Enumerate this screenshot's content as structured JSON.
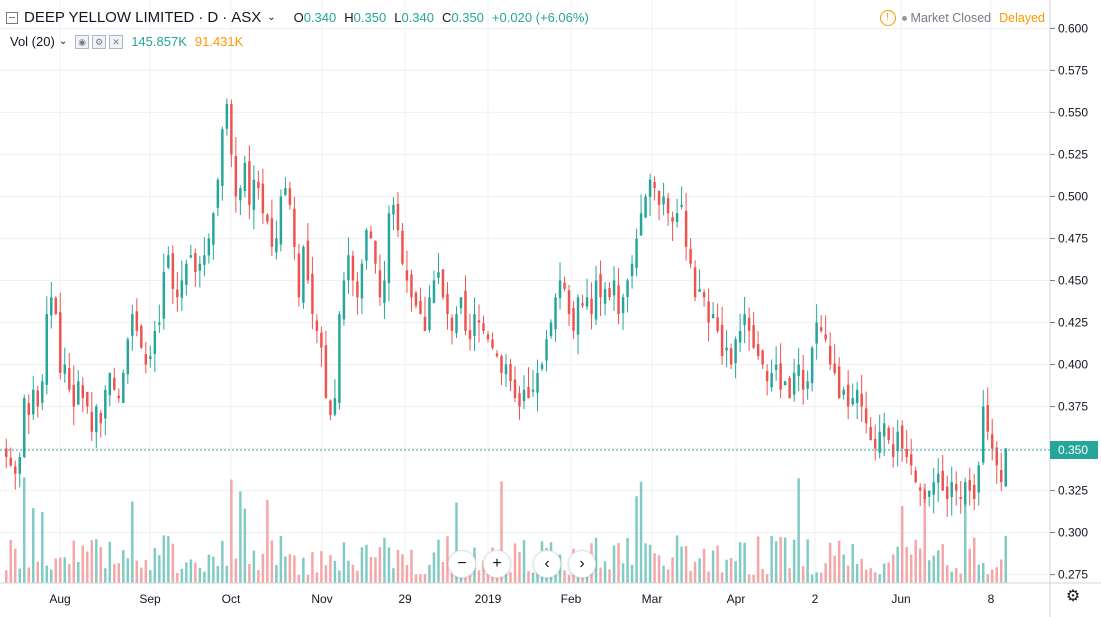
{
  "header": {
    "symbol": "DEEP YELLOW LIMITED",
    "sep1": "·",
    "interval": "D",
    "sep2": "·",
    "exchange": "ASX",
    "o_label": "O",
    "o_value": "0.340",
    "h_label": "H",
    "h_value": "0.350",
    "l_label": "L",
    "l_value": "0.340",
    "c_label": "C",
    "c_value": "0.350",
    "change": "+0.020 (+6.06%)"
  },
  "volume_header": {
    "label": "Vol (20)",
    "value_up": "145.857K",
    "value_down": "91.431K"
  },
  "status": {
    "warning_icon": "!",
    "market": "Market Closed",
    "delay": "Delayed"
  },
  "price_axis": {
    "ticks": [
      "0.275",
      "0.300",
      "0.325",
      "0.350",
      "0.375",
      "0.400",
      "0.425",
      "0.450",
      "0.475",
      "0.500",
      "0.525",
      "0.550",
      "0.575",
      "0.600"
    ],
    "last_price_label": "0.350"
  },
  "time_axis": {
    "labels": [
      "Aug",
      "Sep",
      "Oct",
      "Nov",
      "29",
      "2019",
      "Feb",
      "Mar",
      "Apr",
      "2",
      "Jun",
      "8"
    ]
  },
  "nav": {
    "zoom_out": "−",
    "zoom_in": "+",
    "scroll_left": "‹",
    "scroll_right": "›"
  },
  "colors": {
    "up": "#26a69a",
    "down": "#ef5350",
    "vol_up": "#80cbc4",
    "vol_down": "#f5a6a6",
    "grid": "#eef0f4",
    "last_line": "#26a69a"
  },
  "chart_data": {
    "type": "candlestick",
    "title": "DEEP YELLOW LIMITED · D · ASX",
    "y_range": [
      0.27,
      0.605
    ],
    "grid": true,
    "x_ticks": [
      "Aug",
      "Sep",
      "Oct",
      "Nov",
      "29",
      "2019",
      "Feb",
      "Mar",
      "Apr",
      "2",
      "Jun",
      "8"
    ],
    "last_price": 0.35,
    "closes": [
      0.345,
      0.34,
      0.335,
      0.345,
      0.38,
      0.37,
      0.385,
      0.375,
      0.39,
      0.43,
      0.44,
      0.43,
      0.395,
      0.4,
      0.385,
      0.375,
      0.39,
      0.38,
      0.375,
      0.36,
      0.375,
      0.365,
      0.385,
      0.395,
      0.385,
      0.38,
      0.395,
      0.415,
      0.43,
      0.42,
      0.41,
      0.4,
      0.405,
      0.42,
      0.425,
      0.455,
      0.465,
      0.445,
      0.44,
      0.45,
      0.46,
      0.465,
      0.455,
      0.46,
      0.465,
      0.475,
      0.49,
      0.51,
      0.54,
      0.555,
      0.525,
      0.5,
      0.505,
      0.52,
      0.495,
      0.51,
      0.505,
      0.49,
      0.485,
      0.47,
      0.475,
      0.5,
      0.505,
      0.495,
      0.47,
      0.44,
      0.47,
      0.45,
      0.43,
      0.42,
      0.41,
      0.38,
      0.37,
      0.38,
      0.43,
      0.45,
      0.465,
      0.45,
      0.44,
      0.46,
      0.48,
      0.475,
      0.46,
      0.44,
      0.45,
      0.49,
      0.495,
      0.48,
      0.46,
      0.45,
      0.44,
      0.435,
      0.43,
      0.42,
      0.44,
      0.45,
      0.455,
      0.44,
      0.43,
      0.42,
      0.43,
      0.44,
      0.42,
      0.415,
      0.43,
      0.425,
      0.42,
      0.415,
      0.41,
      0.405,
      0.395,
      0.4,
      0.39,
      0.38,
      0.375,
      0.385,
      0.38,
      0.385,
      0.395,
      0.4,
      0.415,
      0.425,
      0.44,
      0.45,
      0.445,
      0.43,
      0.42,
      0.44,
      0.435,
      0.44,
      0.43,
      0.45,
      0.44,
      0.445,
      0.44,
      0.45,
      0.43,
      0.44,
      0.45,
      0.46,
      0.475,
      0.49,
      0.5,
      0.51,
      0.505,
      0.495,
      0.5,
      0.49,
      0.485,
      0.49,
      0.495,
      0.47,
      0.46,
      0.44,
      0.445,
      0.44,
      0.425,
      0.43,
      0.42,
      0.405,
      0.41,
      0.4,
      0.415,
      0.42,
      0.43,
      0.42,
      0.41,
      0.405,
      0.4,
      0.39,
      0.395,
      0.4,
      0.385,
      0.39,
      0.38,
      0.395,
      0.4,
      0.385,
      0.39,
      0.41,
      0.425,
      0.42,
      0.415,
      0.4,
      0.395,
      0.38,
      0.385,
      0.375,
      0.38,
      0.385,
      0.375,
      0.365,
      0.355,
      0.35,
      0.36,
      0.365,
      0.355,
      0.345,
      0.36,
      0.35,
      0.345,
      0.34,
      0.33,
      0.325,
      0.32,
      0.325,
      0.33,
      0.335,
      0.325,
      0.32,
      0.33,
      0.325,
      0.32,
      0.33,
      0.325,
      0.32,
      0.34,
      0.375,
      0.36,
      0.35,
      0.34,
      0.33,
      0.35
    ],
    "volume_max_value": 145857
  }
}
